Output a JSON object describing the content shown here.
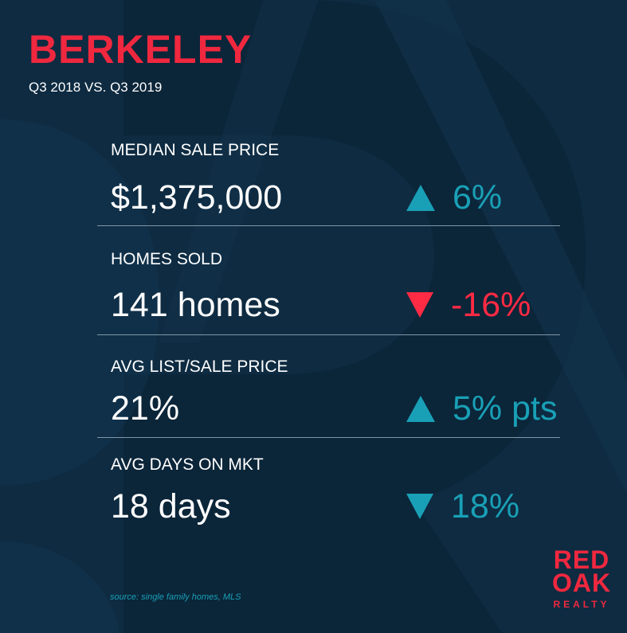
{
  "header": {
    "city": "BERKELEY",
    "period": "Q3 2018 VS. Q3 2019"
  },
  "metrics": [
    {
      "label": "MEDIAN SALE PRICE",
      "value": "$1,375,000",
      "change": "6%",
      "direction": "up",
      "color": "#19a0b6"
    },
    {
      "label": "HOMES SOLD",
      "value": "141 homes",
      "change": "-16%",
      "direction": "down",
      "color": "#ff2a43"
    },
    {
      "label": "AVG LIST/SALE PRICE",
      "value": "21%",
      "change": "5% pts",
      "direction": "up",
      "color": "#19a0b6"
    },
    {
      "label": "AVG DAYS ON MKT",
      "value": "18 days",
      "change": "18%",
      "direction": "down",
      "color": "#19a0b6"
    }
  ],
  "footer": {
    "source": "source: single family homes, MLS"
  },
  "logo": {
    "line1": "RED",
    "line2": "OAK",
    "line3": "REALTY"
  },
  "colors": {
    "accent_red": "#f0283f",
    "accent_teal": "#19a0b6",
    "background": "#0e2b41"
  },
  "icons": [
    "triangle-up-icon",
    "triangle-down-icon"
  ]
}
